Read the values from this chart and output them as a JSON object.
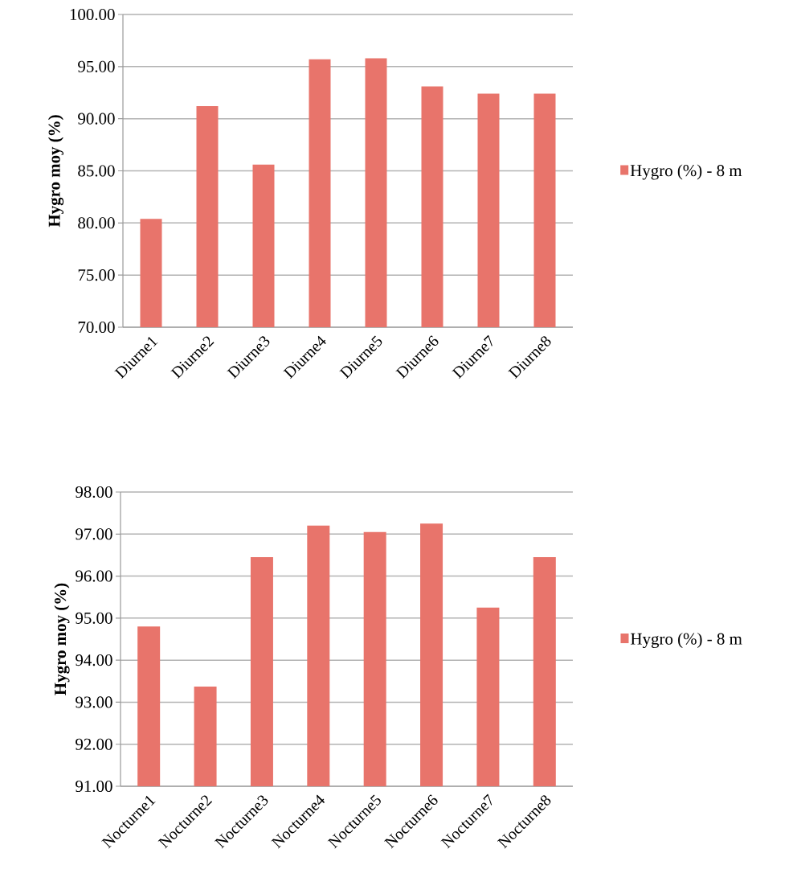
{
  "chart_data": [
    {
      "type": "bar",
      "ylabel": "Hygro moy (%)",
      "categories": [
        "Diurne1",
        "Diurne2",
        "Diurne3",
        "Diurne4",
        "Diurne5",
        "Diurne6",
        "Diurne7",
        "Diurne8"
      ],
      "series": [
        {
          "name": "Hygro (%) - 8 m",
          "color": "#e8746b",
          "values": [
            80.4,
            91.2,
            85.6,
            95.7,
            95.8,
            93.1,
            92.4,
            92.4
          ]
        }
      ],
      "ylim": [
        70,
        100
      ],
      "yticks": [
        {
          "value": 70,
          "label": "70.00"
        },
        {
          "value": 75,
          "label": "75.00"
        },
        {
          "value": 80,
          "label": "80.00"
        },
        {
          "value": 85,
          "label": "85.00"
        },
        {
          "value": 90,
          "label": "90.00"
        },
        {
          "value": 95,
          "label": "95.00"
        },
        {
          "value": 100,
          "label": "100.00"
        }
      ],
      "grid": "y",
      "legend": "right"
    },
    {
      "type": "bar",
      "ylabel": "Hygro moy (%)",
      "categories": [
        "Nocturne1",
        "Nocturne2",
        "Nocturne3",
        "Nocturne4",
        "Nocturne5",
        "Nocturne6",
        "Nocturne7",
        "Nocturne8"
      ],
      "series": [
        {
          "name": "Hygro (%) - 8 m",
          "color": "#e8746b",
          "values": [
            94.8,
            93.37,
            96.45,
            97.2,
            97.05,
            97.25,
            95.25,
            96.45
          ]
        }
      ],
      "ylim": [
        91,
        98
      ],
      "yticks": [
        {
          "value": 91,
          "label": "91.00"
        },
        {
          "value": 92,
          "label": "92.00"
        },
        {
          "value": 93,
          "label": "93.00"
        },
        {
          "value": 94,
          "label": "94.00"
        },
        {
          "value": 95,
          "label": "95.00"
        },
        {
          "value": 96,
          "label": "96.00"
        },
        {
          "value": 97,
          "label": "97.00"
        },
        {
          "value": 98,
          "label": "98.00"
        }
      ],
      "grid": "y",
      "legend": "right"
    }
  ]
}
